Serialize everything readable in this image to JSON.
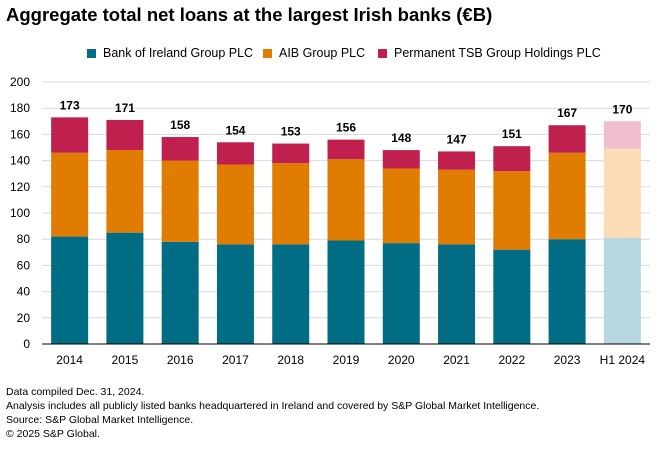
{
  "header": {
    "title": "Aggregate total net loans at the largest Irish banks (€B)"
  },
  "colors": {
    "bank_of_ireland": "#006d85",
    "aib": "#e07c00",
    "ptsb": "#c0204e",
    "bank_of_ireland_light": "#b6d7df",
    "aib_light": "#fcdcb7",
    "ptsb_light": "#efbfcf",
    "grid": "#d9d9d9",
    "axis": "#000000"
  },
  "chart_data": {
    "type": "bar",
    "stacked": true,
    "title": "Aggregate total net loans at the largest Irish banks (€B)",
    "xlabel": "",
    "ylabel": "",
    "ylim": [
      0,
      200
    ],
    "yticks": [
      0,
      20,
      40,
      60,
      80,
      100,
      120,
      140,
      160,
      180,
      200
    ],
    "grid": true,
    "legend_position": "top",
    "categories": [
      "2014",
      "2015",
      "2016",
      "2017",
      "2018",
      "2019",
      "2020",
      "2021",
      "2022",
      "2023",
      "H1 2024"
    ],
    "series": [
      {
        "name": "Bank of Ireland Group PLC",
        "values": [
          82,
          85,
          78,
          76,
          76,
          79,
          77,
          76,
          72,
          80,
          81
        ]
      },
      {
        "name": "AIB Group PLC",
        "values": [
          64,
          63,
          62,
          61,
          62,
          62,
          57,
          57,
          60,
          66,
          68
        ]
      },
      {
        "name": "Permanent TSB Group Holdings PLC",
        "values": [
          27,
          23,
          18,
          17,
          15,
          15,
          14,
          14,
          19,
          21,
          21
        ]
      }
    ],
    "totals": [
      "173",
      "171",
      "158",
      "154",
      "153",
      "156",
      "148",
      "147",
      "151",
      "167",
      "170"
    ],
    "highlight_last_as_partial": true
  },
  "footnotes": [
    "Data compiled Dec. 31, 2024.",
    "Analysis includes all publicly listed banks headquartered in Ireland and covered by S&P Global Market Intelligence.",
    "Source: S&P Global Market Intelligence.",
    "© 2025 S&P Global."
  ]
}
